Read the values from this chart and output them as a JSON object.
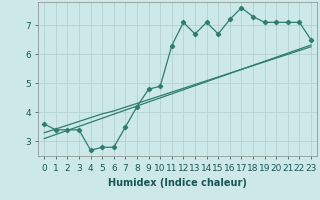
{
  "xlabel": "Humidex (Indice chaleur)",
  "bg_color": "#cce8e8",
  "line_color": "#2e7d6e",
  "grid_color": "#b0cccc",
  "x_data": [
    0,
    1,
    2,
    3,
    4,
    5,
    6,
    7,
    8,
    9,
    10,
    11,
    12,
    13,
    14,
    15,
    16,
    17,
    18,
    19,
    20,
    21,
    22,
    23
  ],
  "y_main": [
    3.6,
    3.4,
    3.4,
    3.4,
    2.7,
    2.8,
    2.8,
    3.5,
    4.2,
    4.8,
    4.9,
    6.3,
    7.1,
    6.7,
    7.1,
    6.7,
    7.2,
    7.6,
    7.3,
    7.1,
    7.1,
    7.1,
    7.1,
    6.5
  ],
  "y_line1": [
    3.3,
    3.43,
    3.56,
    3.69,
    3.82,
    3.95,
    4.05,
    4.18,
    4.31,
    4.44,
    4.57,
    4.7,
    4.83,
    4.96,
    5.09,
    5.22,
    5.35,
    5.48,
    5.61,
    5.74,
    5.87,
    6.0,
    6.13,
    6.26
  ],
  "y_line2": [
    3.1,
    3.24,
    3.38,
    3.52,
    3.66,
    3.8,
    3.94,
    4.08,
    4.22,
    4.36,
    4.5,
    4.64,
    4.78,
    4.92,
    5.06,
    5.2,
    5.34,
    5.48,
    5.62,
    5.76,
    5.9,
    6.04,
    6.18,
    6.32
  ],
  "yticks": [
    3,
    4,
    5,
    6,
    7
  ],
  "xticks": [
    0,
    1,
    2,
    3,
    4,
    5,
    6,
    7,
    8,
    9,
    10,
    11,
    12,
    13,
    14,
    15,
    16,
    17,
    18,
    19,
    20,
    21,
    22,
    23
  ],
  "xlim": [
    -0.5,
    23.5
  ],
  "ylim": [
    2.5,
    7.8
  ],
  "label_fontsize": 7,
  "tick_fontsize": 6.5
}
